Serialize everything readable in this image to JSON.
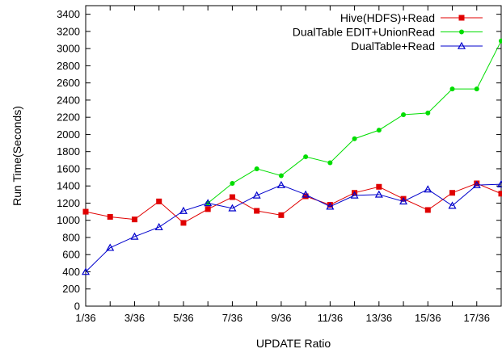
{
  "chart_data": {
    "type": "line",
    "title": "",
    "xlabel": "UPDATE Ratio",
    "ylabel": "Run Time(Seconds)",
    "ylim": [
      0,
      3500
    ],
    "yticks": [
      0,
      200,
      400,
      600,
      800,
      1000,
      1200,
      1400,
      1600,
      1800,
      2000,
      2200,
      2400,
      2600,
      2800,
      3000,
      3200,
      3400
    ],
    "x": [
      "1/36",
      "2/36",
      "3/36",
      "4/36",
      "5/36",
      "6/36",
      "7/36",
      "8/36",
      "9/36",
      "10/36",
      "11/36",
      "12/36",
      "13/36",
      "14/36",
      "15/36",
      "16/36",
      "17/36",
      "18/36"
    ],
    "xtick_labels": [
      "1/36",
      "3/36",
      "5/36",
      "7/36",
      "9/36",
      "11/36",
      "13/36",
      "15/36",
      "17/36"
    ],
    "grid": false,
    "legend_position": "top-right",
    "series": [
      {
        "name": "Hive(HDFS)+Read",
        "color": "#e00000",
        "marker": "square",
        "values": [
          1100,
          1040,
          1010,
          1220,
          970,
          1130,
          1270,
          1110,
          1060,
          1280,
          1180,
          1320,
          1390,
          1250,
          1120,
          1320,
          1430,
          1310
        ]
      },
      {
        "name": "DualTable EDIT+UnionRead",
        "color": "#00dd00",
        "marker": "circle",
        "values": [
          null,
          null,
          null,
          null,
          null,
          1200,
          1430,
          1600,
          1520,
          1740,
          1670,
          1950,
          2050,
          2230,
          2250,
          2530,
          2530,
          3090
        ]
      },
      {
        "name": "DualTable+Read",
        "color": "#0000cc",
        "marker": "triangle",
        "values": [
          400,
          680,
          810,
          920,
          1110,
          1200,
          1140,
          1290,
          1410,
          1300,
          1160,
          1290,
          1300,
          1220,
          1360,
          1170,
          1410,
          1420
        ]
      }
    ]
  }
}
